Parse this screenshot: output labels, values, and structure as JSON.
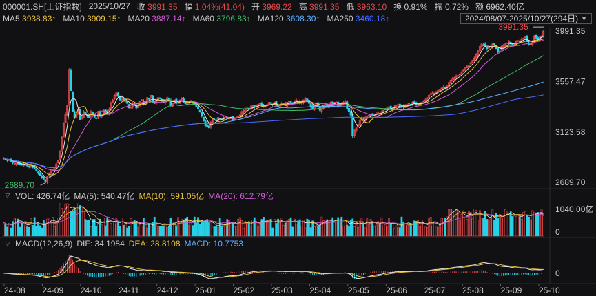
{
  "header": {
    "symbol": "000001.SH[上证指数]",
    "date": "2025/10/27",
    "close_label": "收",
    "close": "3991.35",
    "change_label": "幅",
    "change": "1.04%(41.04)",
    "open_label": "开",
    "open": "3969.22",
    "high_label": "高",
    "high": "3991.35",
    "low_label": "低",
    "low": "3963.10",
    "amp_label": "换",
    "amp": "0.91%",
    "swing_label": "振",
    "swing": "0.72%",
    "amount_label": "额",
    "amount": "6962.40亿"
  },
  "ma_bar": {
    "items": [
      {
        "label": "MA5",
        "value": "3938.83↑",
        "color": "#e8c23a"
      },
      {
        "label": "MA10",
        "value": "3909.15↑",
        "color": "#e8c23a"
      },
      {
        "label": "MA20",
        "value": "3887.14↑",
        "color": "#d05bd8"
      },
      {
        "label": "MA60",
        "value": "3796.83↑",
        "color": "#3fbf6b"
      },
      {
        "label": "MA120",
        "value": "3608.30↑",
        "color": "#5fb0ff"
      },
      {
        "label": "MA250",
        "value": "3460.18↑",
        "color": "#4a6cff"
      }
    ],
    "range": "2024/08/07-2025/10/27(294日)"
  },
  "volume_panel": {
    "vol_label": "VOL:",
    "vol_value": "426.74亿",
    "ma5_label": "MA(5):",
    "ma5_value": "540.47亿",
    "ma10_label": "MA(10):",
    "ma10_value": "591.05亿",
    "ma20_label": "MA(20):",
    "ma20_value": "612.79亿",
    "axis_top": "1040.00亿",
    "axis_zero": "0"
  },
  "macd_panel": {
    "label": "MACD(12,26,9)",
    "dif_label": "DIF:",
    "dif_value": "34.1984",
    "dea_label": "DEA:",
    "dea_value": "28.8108",
    "macd_label": "MACD:",
    "macd_value": "10.7753",
    "axis_zero": "0"
  },
  "colors": {
    "up": "#e84a4a",
    "down": "#27d2e8",
    "ma5": "#e8e8e8",
    "ma10": "#e8c23a",
    "ma20": "#d05bd8",
    "ma60": "#3fbf6b",
    "ma120": "#5fb0ff",
    "ma250": "#4a6cff",
    "dif": "#e8e8e8",
    "dea": "#e8c23a"
  },
  "chart_data": {
    "type": "candlestick",
    "y_ticks": [
      "3991.35",
      "3557.47",
      "3123.58",
      "2689.70"
    ],
    "ylim": [
      2689.7,
      3991.35
    ],
    "x_ticks": [
      "24-08",
      "24-09",
      "24-10",
      "24-11",
      "24-12",
      "25-01",
      "25-02",
      "25-03",
      "25-04",
      "25-05",
      "25-06",
      "25-07",
      "25-08",
      "25-09",
      "25-10"
    ],
    "annotations": {
      "high": "3991.35",
      "low": "2689.70"
    },
    "close_series": [
      2900,
      2890,
      2880,
      2885,
      2870,
      2860,
      2855,
      2865,
      2850,
      2845,
      2840,
      2850,
      2845,
      2835,
      2830,
      2840,
      2820,
      2810,
      2790,
      2770,
      2750,
      2730,
      2720,
      2700,
      2740,
      2760,
      2790,
      2800,
      2820,
      2850,
      2880,
      2960,
      3080,
      3200,
      3280,
      3350,
      3660,
      3480,
      3300,
      3250,
      3280,
      3320,
      3230,
      3260,
      3300,
      3280,
      3260,
      3250,
      3300,
      3270,
      3250,
      3240,
      3290,
      3260,
      3280,
      3310,
      3300,
      3280,
      3320,
      3370,
      3400,
      3440,
      3460,
      3430,
      3400,
      3420,
      3390,
      3400,
      3370,
      3330,
      3340,
      3370,
      3360,
      3330,
      3350,
      3390,
      3400,
      3360,
      3380,
      3420,
      3410,
      3440,
      3380,
      3370,
      3400,
      3420,
      3410,
      3390,
      3380,
      3400,
      3420,
      3390,
      3350,
      3370,
      3400,
      3370,
      3380,
      3400,
      3410,
      3380,
      3370,
      3360,
      3380,
      3390,
      3370,
      3360,
      3340,
      3320,
      3300,
      3260,
      3220,
      3180,
      3170,
      3160,
      3210,
      3240,
      3230,
      3220,
      3250,
      3240,
      3230,
      3250,
      3260,
      3240,
      3250,
      3250,
      3230,
      3240,
      3250,
      3260,
      3270,
      3300,
      3310,
      3320,
      3330,
      3320,
      3340,
      3350,
      3340,
      3350,
      3360,
      3370,
      3350,
      3340,
      3350,
      3360,
      3380,
      3370,
      3360,
      3380,
      3350,
      3340,
      3360,
      3370,
      3370,
      3350,
      3380,
      3390,
      3380,
      3370,
      3380,
      3400,
      3390,
      3370,
      3380,
      3400,
      3410,
      3390,
      3370,
      3340,
      3320,
      3350,
      3370,
      3340,
      3310,
      3330,
      3350,
      3370,
      3340,
      3360,
      3380,
      3370,
      3380,
      3380,
      3350,
      3370,
      3360,
      3380,
      3390,
      3320,
      3300,
      3270,
      3090,
      3140,
      3160,
      3190,
      3220,
      3240,
      3230,
      3250,
      3260,
      3270,
      3280,
      3260,
      3280,
      3280,
      3290,
      3280,
      3300,
      3310,
      3320,
      3330,
      3340,
      3320,
      3330,
      3340,
      3350,
      3360,
      3350,
      3340,
      3340,
      3350,
      3360,
      3370,
      3360,
      3380,
      3370,
      3360,
      3360,
      3370,
      3380,
      3390,
      3400,
      3420,
      3440,
      3450,
      3460,
      3460,
      3470,
      3480,
      3490,
      3500,
      3510,
      3500,
      3520,
      3550,
      3570,
      3580,
      3590,
      3600,
      3610,
      3620,
      3640,
      3660,
      3680,
      3690,
      3700,
      3720,
      3740,
      3760,
      3790,
      3820,
      3860,
      3880,
      3870,
      3860,
      3840,
      3850,
      3860,
      3880,
      3870,
      3840,
      3810,
      3820,
      3860,
      3870,
      3880,
      3890,
      3900,
      3880,
      3870,
      3880,
      3900,
      3910,
      3900,
      3920,
      3930,
      3940,
      3900,
      3870,
      3880,
      3900,
      3950,
      3930,
      3920,
      3940,
      3950,
      3991
    ]
  }
}
